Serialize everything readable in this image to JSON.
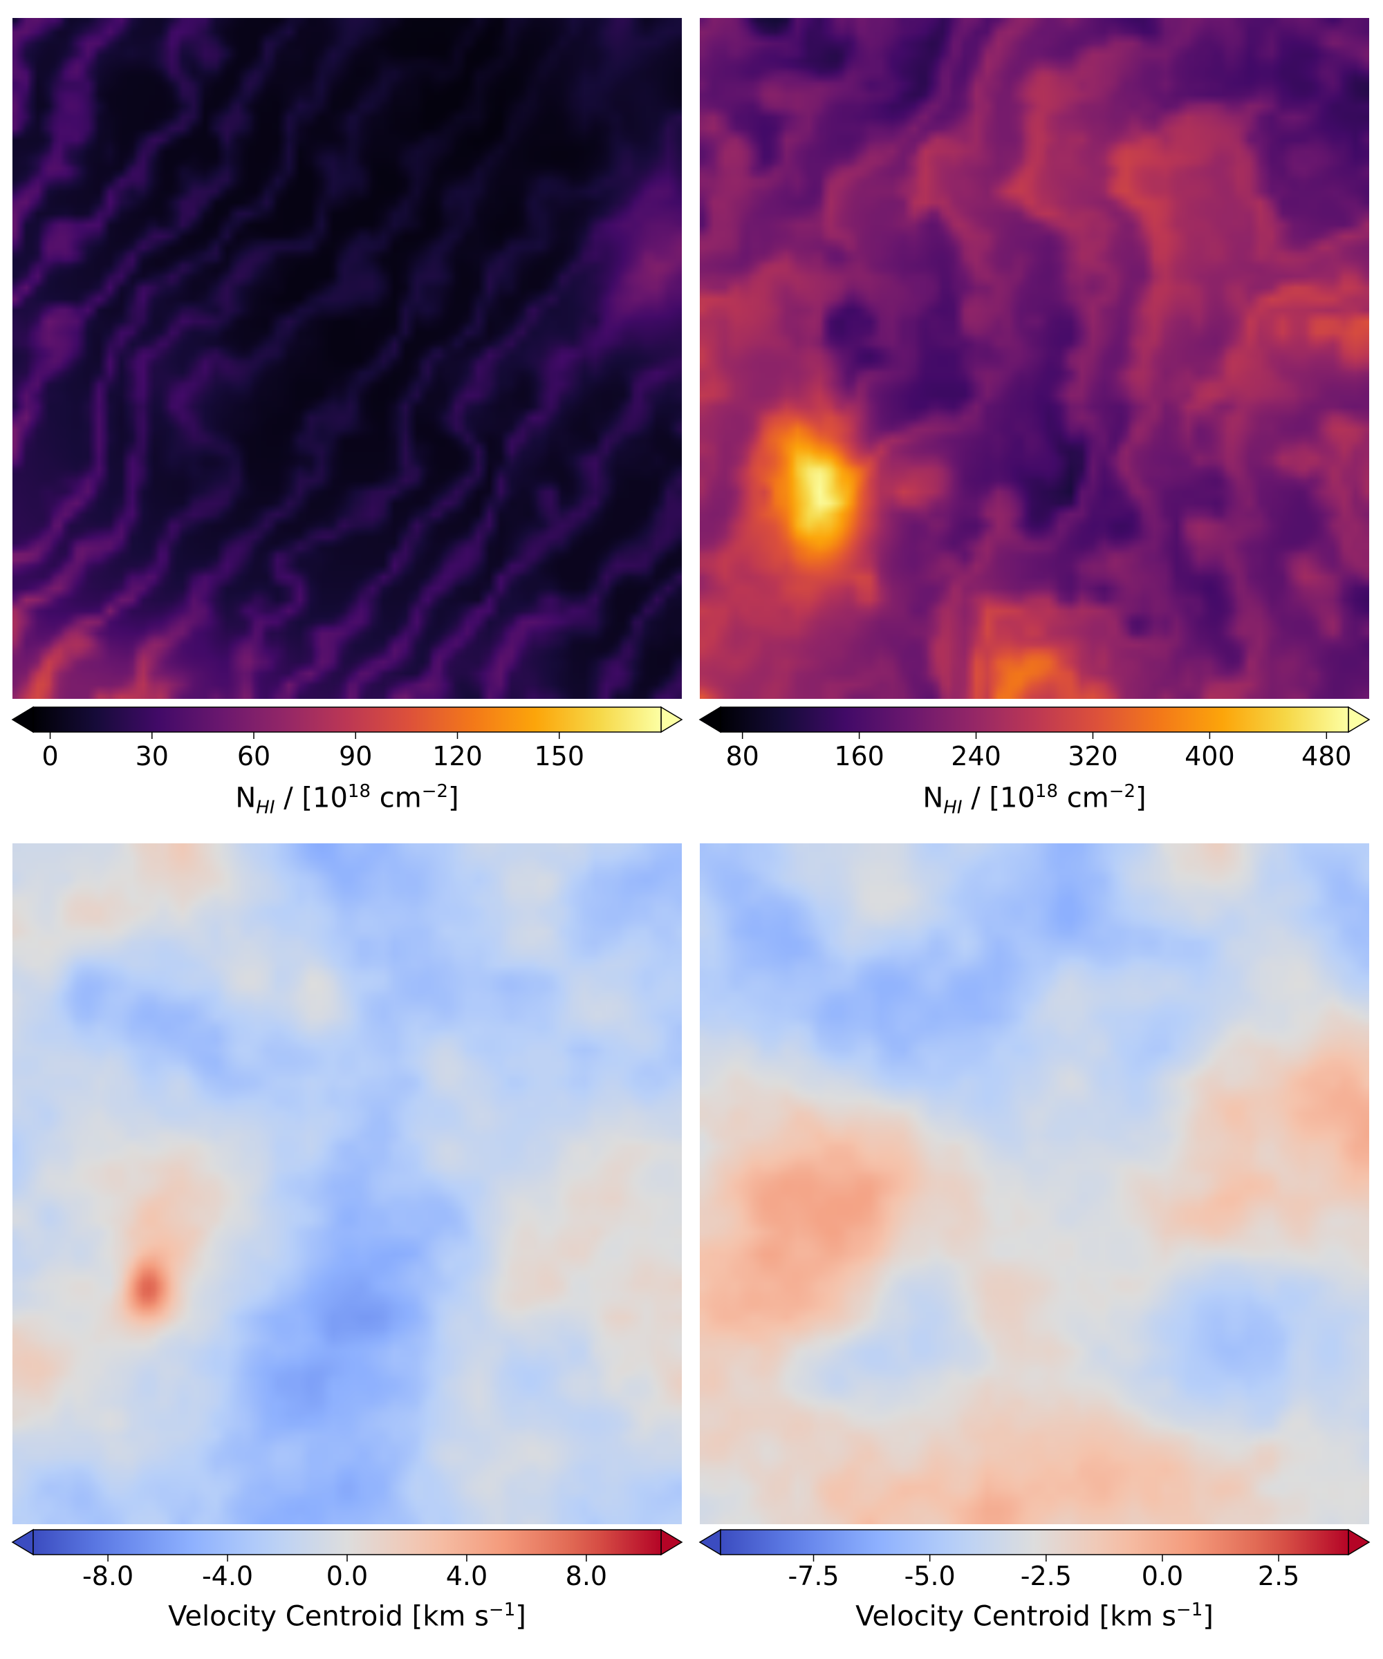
{
  "chart_data": [
    {
      "type": "heatmap",
      "panel": "top-left",
      "colormap": "inferno",
      "quantity": "column density",
      "clim": [
        -5,
        180
      ],
      "extend": "both",
      "ticks": [
        0,
        30,
        60,
        90,
        120,
        150
      ],
      "tick_labels": [
        "0",
        "30",
        "60",
        "90",
        "120",
        "150"
      ],
      "cbar_label": {
        "main": "N",
        "sub": "HI",
        "rest": " / [10",
        "sup": "18",
        "unit": " cm",
        "sup2": "−2",
        "close": "]"
      },
      "seed": 11
    },
    {
      "type": "heatmap",
      "panel": "top-right",
      "colormap": "inferno",
      "quantity": "column density",
      "clim": [
        65,
        495
      ],
      "extend": "both",
      "ticks": [
        80,
        160,
        240,
        320,
        400,
        480
      ],
      "tick_labels": [
        "80",
        "160",
        "240",
        "320",
        "400",
        "480"
      ],
      "cbar_label": {
        "main": "N",
        "sub": "HI",
        "rest": " / [10",
        "sup": "18",
        "unit": " cm",
        "sup2": "−2",
        "close": "]"
      },
      "seed": 23
    },
    {
      "type": "heatmap",
      "panel": "bottom-left",
      "colormap": "coolwarm",
      "quantity": "velocity centroid",
      "clim": [
        -10.5,
        10.5
      ],
      "extend": "both",
      "ticks": [
        -8.0,
        -4.0,
        0.0,
        4.0,
        8.0
      ],
      "tick_labels": [
        "-8.0",
        "-4.0",
        "0.0",
        "4.0",
        "8.0"
      ],
      "cbar_label": {
        "text": "Velocity Centroid [km s",
        "sup": "−1",
        "close": "]"
      },
      "seed": 37
    },
    {
      "type": "heatmap",
      "panel": "bottom-right",
      "colormap": "coolwarm",
      "quantity": "velocity centroid",
      "clim": [
        -9.5,
        4.0
      ],
      "extend": "both",
      "ticks": [
        -7.5,
        -5.0,
        -2.5,
        0.0,
        2.5
      ],
      "tick_labels": [
        "-7.5",
        "-5.0",
        "-2.5",
        "0.0",
        "2.5"
      ],
      "cbar_label": {
        "text": "Velocity Centroid [km s",
        "sup": "−1",
        "close": "]"
      },
      "seed": 53
    }
  ]
}
